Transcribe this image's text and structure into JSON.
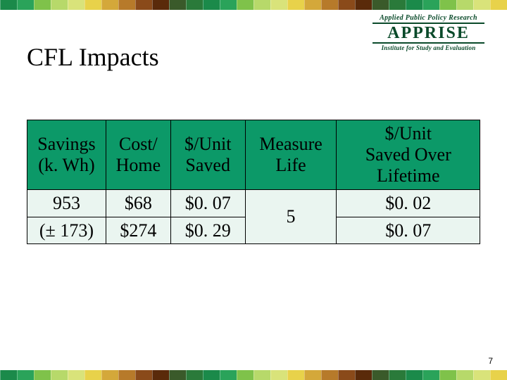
{
  "border": {
    "colors": [
      "#1b8a4a",
      "#2aa35a",
      "#7fc24a",
      "#b7d96a",
      "#d9e37a",
      "#e8d24a",
      "#d4a83a",
      "#b77a2a",
      "#8a4a1a",
      "#5a2a0a",
      "#3a5a2a",
      "#2a7a3a",
      "#1b8a4a",
      "#2aa35a",
      "#7fc24a",
      "#b7d96a",
      "#d9e37a",
      "#e8d24a",
      "#d4a83a",
      "#b77a2a",
      "#8a4a1a",
      "#5a2a0a",
      "#3a5a2a",
      "#2a7a3a",
      "#1b8a4a",
      "#2aa35a",
      "#7fc24a",
      "#b7d96a",
      "#d9e37a",
      "#e8d24a"
    ]
  },
  "logo": {
    "top_arc": "Applied Public Policy Research",
    "main": "APPRISE",
    "bottom_arc": "Institute for Study and Evaluation"
  },
  "title": "CFL Impacts",
  "table": {
    "headers": {
      "c0": "Savings\n(k. Wh)",
      "c1": "Cost/\nHome",
      "c2": "$/Unit\nSaved",
      "c3": "Measure\nLife",
      "c4": "$/Unit\nSaved Over\nLifetime"
    },
    "rows": {
      "r0": {
        "c0": "953",
        "c1": "$68",
        "c2": "$0. 07",
        "c4": "$0. 02"
      },
      "r1": {
        "c0": "(± 173)",
        "c1": "$274",
        "c2": "$0. 29",
        "c4": "$0. 07"
      },
      "merged_c3": "5"
    },
    "header_bg": "#0c9968",
    "body_bg": "#eaf5f0",
    "border_color": "#000000"
  },
  "page_number": "7"
}
